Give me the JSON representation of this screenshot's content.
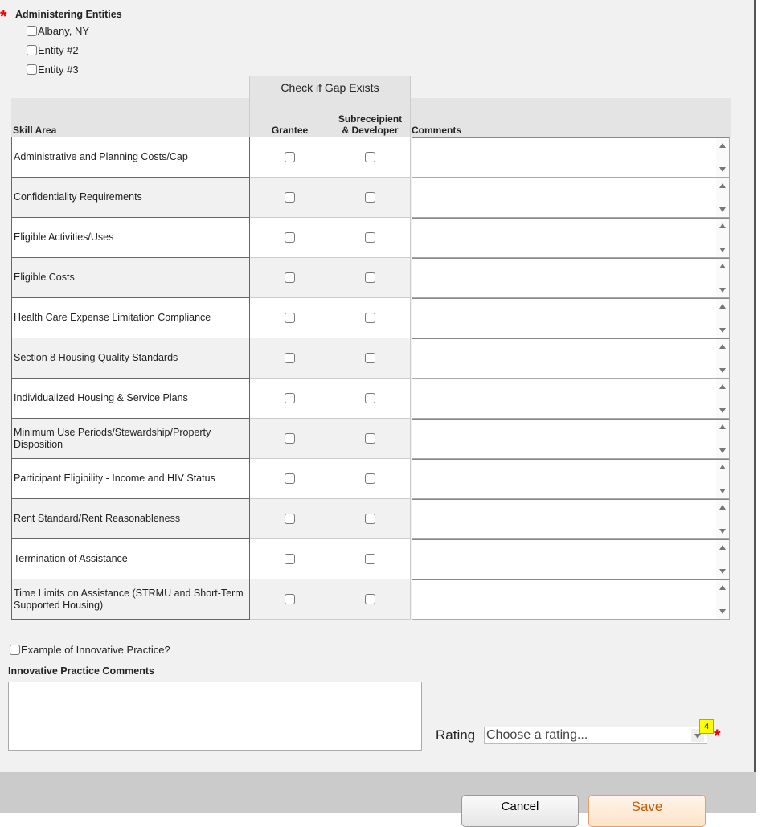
{
  "entities": {
    "label": "Administering Entities",
    "items": [
      "Albany, NY",
      "Entity #2",
      "Entity #3"
    ]
  },
  "table": {
    "group_header": "Check if Gap Exists",
    "headers": {
      "skill": "Skill Area",
      "grantee": "Grantee",
      "sub": "Subreceipient & Developer",
      "comments": "Comments"
    },
    "rows": [
      "Administrative and Planning Costs/Cap",
      "Confidentiality Requirements",
      "Eligible  Activities/Uses",
      "Eligible Costs",
      "Health Care Expense Limitation Compliance",
      "Section 8 Housing Quality Standards",
      "Individualized Housing & Service Plans",
      "Minimum Use Periods/Stewardship/Property Disposition",
      "Participant Eligibility - Income and HIV Status",
      "Rent Standard/Rent Reasonableness",
      "Termination of Assistance",
      "Time Limits on Assistance (STRMU and Short-Term Supported Housing)"
    ]
  },
  "innovative": {
    "checkbox_label": "Example of Innovative Practice?",
    "comments_label": "Innovative Practice Comments",
    "comments_value": ""
  },
  "rating": {
    "label": "Rating",
    "placeholder": "Choose a rating...",
    "badge": "4"
  },
  "footer": {
    "cancel": "Cancel",
    "save": "Save"
  },
  "colors": {
    "required": "#ee0000",
    "badge": "#ffff00",
    "save_bg": "#fde3c8",
    "save_text": "#c85a00"
  }
}
